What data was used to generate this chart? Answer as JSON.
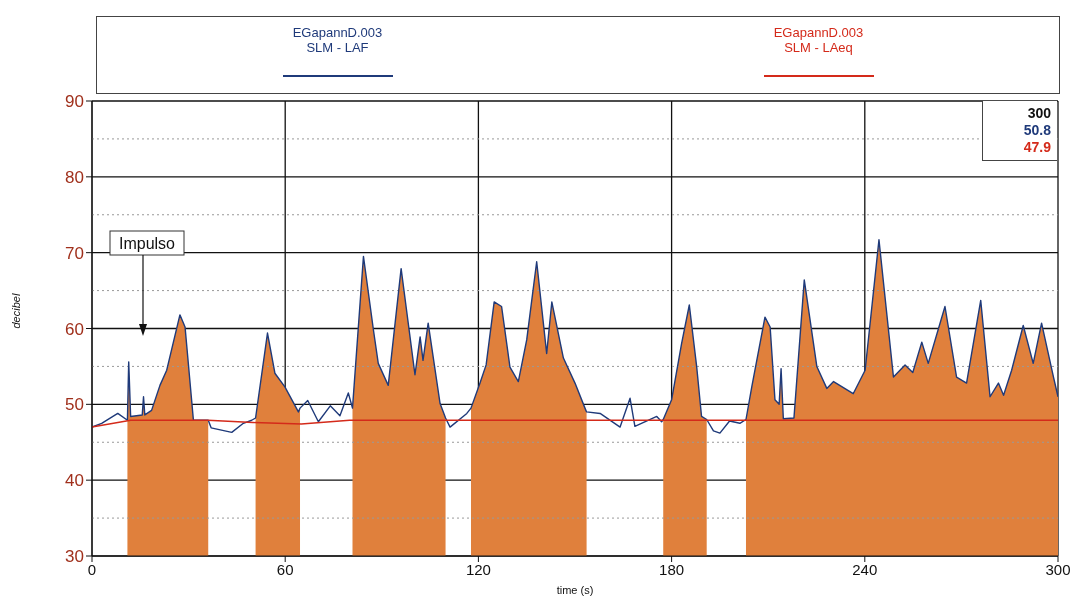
{
  "chart_data": {
    "type": "line",
    "xlabel": "time (s)",
    "ylabel": "decibel",
    "xlim": [
      0,
      300
    ],
    "xticks": [
      0,
      60,
      120,
      180,
      240,
      300
    ],
    "ylim": [
      30,
      90
    ],
    "yticks": [
      30,
      40,
      50,
      60,
      70,
      80,
      90
    ],
    "grid": true,
    "legend": "top",
    "marker": "none",
    "line_style": "solid",
    "annotations": [
      "300",
      "50.8",
      "47.9",
      "Impulso"
    ],
    "series": [
      {
        "type": "area",
        "color": "#e0803c",
        "x": [
          11,
          11.4,
          12,
          15.6,
          16,
          16.4,
          18.5,
          21.1,
          23.2,
          27.3,
          28.9,
          31.5,
          36.1,
          43.4,
          50.8,
          54.5,
          56.8,
          59.9,
          64.1,
          64.6,
          70.3,
          80.9,
          84.3,
          87.4,
          88.9,
          92.0,
          96.0,
          100.3,
          101.9,
          102.8,
          104.4,
          108.1,
          109.8,
          111.2,
          117.7,
          120.5,
          122.4,
          124.9,
          127.2,
          129.8,
          132.4,
          135.0,
          138.1,
          141.2,
          142.8,
          146.4,
          150.0,
          153.1,
          153.6,
          164.0,
          177.4,
          180.0,
          183.1,
          185.5,
          187.8,
          189.3,
          190.9,
          195.0,
          203.1,
          204.9,
          209.0,
          210.6,
          212.1,
          213.4,
          214.0,
          214.7,
          218.0,
          221.2,
          225.1,
          228.2,
          230.3,
          236.4,
          240.1,
          244.4,
          248.9,
          252.5,
          254.9,
          257.7,
          259.7,
          264.9,
          268.5,
          271.6,
          276.0,
          278.9,
          281.5,
          283.1,
          285.6,
          289.2,
          292.3,
          294.9,
          298.6,
          300
        ],
        "values": [
          47.9,
          55.6,
          48.4,
          48.6,
          51,
          48.6,
          49.2,
          52.5,
          54.5,
          61.8,
          60.2,
          47.9,
          47.9,
          null,
          48.2,
          59.4,
          54.1,
          52.3,
          49.0,
          49.5,
          null,
          49.5,
          69.5,
          59.8,
          55.4,
          52.5,
          67.9,
          53.9,
          58.9,
          55.8,
          60.7,
          50.1,
          48.2,
          null,
          49.5,
          52.8,
          55.2,
          63.5,
          62.9,
          54.9,
          53.0,
          58.5,
          68.8,
          56.7,
          63.5,
          56.1,
          52.8,
          49.5,
          49.0,
          null,
          48.0,
          50.6,
          58.0,
          63.1,
          54.9,
          48.4,
          48.0,
          null,
          48.0,
          52.3,
          61.5,
          60.2,
          50.6,
          50.0,
          54.7,
          48.1,
          48.2,
          66.4,
          55.0,
          52.1,
          53.0,
          51.4,
          54.5,
          71.7,
          53.6,
          55.2,
          54.2,
          58.2,
          55.4,
          62.9,
          53.6,
          52.8,
          63.7,
          51.0,
          52.8,
          51.2,
          54.5,
          60.4,
          55.4,
          60.7,
          53.6,
          51.0
        ]
      },
      {
        "name": "EGapannD.003\nSLM - LAF",
        "color": "#1f3a7a",
        "x": [
          0,
          3,
          8,
          11,
          11.4,
          12,
          15.6,
          16,
          16.4,
          18.5,
          21.1,
          23.2,
          27.3,
          28.9,
          31.5,
          36.1,
          37,
          43.4,
          47,
          49.6,
          50.8,
          54.5,
          56.8,
          59.9,
          64.1,
          64.6,
          67,
          70.3,
          74,
          77,
          79.6,
          80.9,
          84.3,
          87.4,
          88.9,
          92.0,
          96.0,
          100.3,
          101.9,
          102.8,
          104.4,
          108.1,
          109.8,
          111.2,
          116.4,
          117.7,
          120.5,
          122.4,
          124.9,
          127.2,
          129.8,
          132.4,
          135.0,
          138.1,
          141.2,
          142.8,
          146.4,
          150.0,
          153.1,
          153.6,
          157.8,
          164.0,
          167.1,
          168.6,
          175.4,
          176.9,
          177.4,
          180.0,
          183.1,
          185.5,
          187.8,
          189.3,
          190.9,
          193.0,
          195.0,
          198,
          201.2,
          203.1,
          204.9,
          209.0,
          210.6,
          212.1,
          213.4,
          214.0,
          214.7,
          218.0,
          221.2,
          225.1,
          228.2,
          230.3,
          236.4,
          240.1,
          244.4,
          248.9,
          252.5,
          254.9,
          257.7,
          259.7,
          264.9,
          268.5,
          271.6,
          276.0,
          278.9,
          281.5,
          283.1,
          285.6,
          289.2,
          292.3,
          294.9,
          298.6,
          300
        ],
        "values": [
          47.0,
          47.5,
          48.8,
          47.9,
          55.6,
          48.4,
          48.6,
          51,
          48.6,
          49.2,
          52.5,
          54.5,
          61.8,
          60.2,
          47.9,
          47.9,
          46.9,
          46.3,
          47.5,
          47.9,
          48.2,
          59.4,
          54.1,
          52.3,
          49.0,
          49.5,
          50.5,
          47.7,
          49.8,
          48.5,
          51.5,
          49.5,
          69.5,
          59.8,
          55.4,
          52.5,
          67.9,
          53.9,
          58.9,
          55.8,
          60.7,
          50.1,
          48.2,
          47.0,
          48.8,
          49.5,
          52.8,
          55.2,
          63.5,
          62.9,
          54.9,
          53.0,
          58.5,
          68.8,
          56.7,
          63.5,
          56.1,
          52.8,
          49.5,
          49.0,
          48.8,
          47.0,
          50.8,
          47.1,
          48.4,
          47.7,
          48.0,
          50.6,
          58.0,
          63.1,
          54.9,
          48.4,
          48.0,
          46.5,
          46.2,
          47.8,
          47.5,
          48.0,
          52.3,
          61.5,
          60.2,
          50.6,
          50.0,
          54.7,
          48.1,
          48.2,
          66.4,
          55.0,
          52.1,
          53.0,
          51.4,
          54.5,
          71.7,
          53.6,
          55.2,
          54.2,
          58.2,
          55.4,
          62.9,
          53.6,
          52.8,
          63.7,
          51.0,
          52.8,
          51.2,
          54.5,
          60.4,
          55.4,
          60.7,
          53.6,
          51.0
        ]
      },
      {
        "name": "EGapannD.003\nSLM - LAeq",
        "color": "#d42a1a",
        "x": [
          0,
          12,
          36,
          50,
          65,
          80,
          300
        ],
        "values": [
          47.0,
          47.9,
          47.9,
          47.6,
          47.4,
          47.9,
          47.9
        ]
      }
    ]
  }
}
